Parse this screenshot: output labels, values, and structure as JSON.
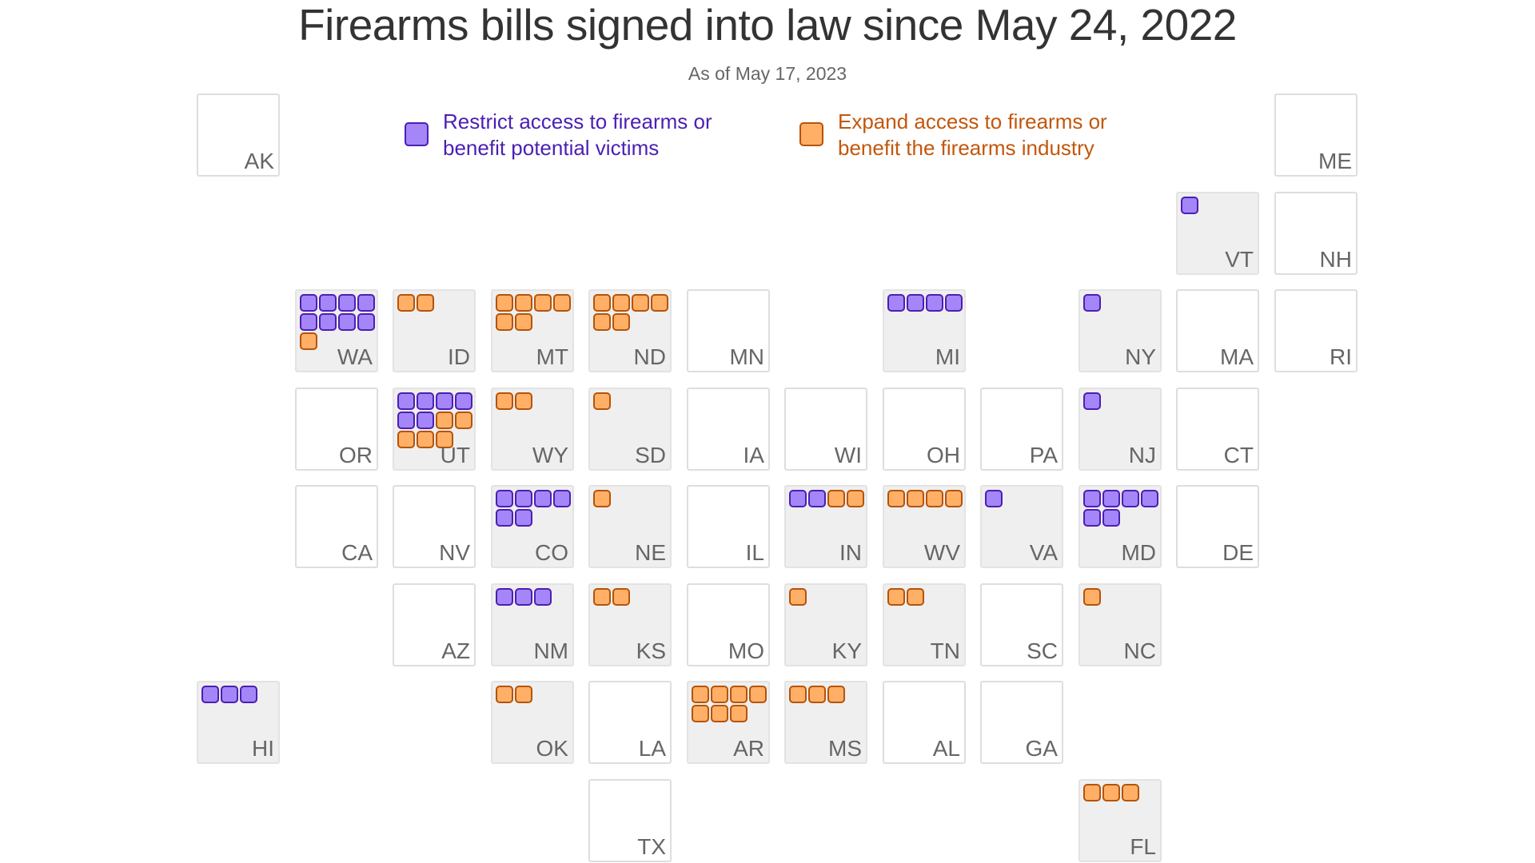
{
  "title": "Firearms bills signed into law since May 24, 2022",
  "subtitle": "As of May 17, 2023",
  "colors": {
    "restrict_fill": "#a586f8",
    "restrict_stroke": "#4b1fb3",
    "restrict_text": "#4b1fb3",
    "expand_fill": "#ffb066",
    "expand_stroke": "#b5530a",
    "expand_text": "#c2570c",
    "tile_border": "#dedede",
    "tile_filled_bg": "#efefef"
  },
  "legend": {
    "restrict": {
      "line1": "Restrict access to firearms or",
      "line2": "benefit potential victims"
    },
    "expand": {
      "line1": "Expand access to firearms or",
      "line2": "benefit the firearms industry"
    }
  },
  "states": [
    {
      "abbr": "AK",
      "col": 0,
      "row": 0,
      "restrict": 0,
      "expand": 0
    },
    {
      "abbr": "ME",
      "col": 11,
      "row": 0,
      "restrict": 0,
      "expand": 0
    },
    {
      "abbr": "VT",
      "col": 10,
      "row": 1,
      "restrict": 1,
      "expand": 0
    },
    {
      "abbr": "NH",
      "col": 11,
      "row": 1,
      "restrict": 0,
      "expand": 0
    },
    {
      "abbr": "WA",
      "col": 1,
      "row": 2,
      "restrict": 8,
      "expand": 1
    },
    {
      "abbr": "ID",
      "col": 2,
      "row": 2,
      "restrict": 0,
      "expand": 2
    },
    {
      "abbr": "MT",
      "col": 3,
      "row": 2,
      "restrict": 0,
      "expand": 6
    },
    {
      "abbr": "ND",
      "col": 4,
      "row": 2,
      "restrict": 0,
      "expand": 6
    },
    {
      "abbr": "MN",
      "col": 5,
      "row": 2,
      "restrict": 0,
      "expand": 0
    },
    {
      "abbr": "MI",
      "col": 7,
      "row": 2,
      "restrict": 4,
      "expand": 0
    },
    {
      "abbr": "NY",
      "col": 9,
      "row": 2,
      "restrict": 1,
      "expand": 0
    },
    {
      "abbr": "MA",
      "col": 10,
      "row": 2,
      "restrict": 0,
      "expand": 0
    },
    {
      "abbr": "RI",
      "col": 11,
      "row": 2,
      "restrict": 0,
      "expand": 0
    },
    {
      "abbr": "OR",
      "col": 1,
      "row": 3,
      "restrict": 0,
      "expand": 0
    },
    {
      "abbr": "UT",
      "col": 2,
      "row": 3,
      "restrict": 6,
      "expand": 5
    },
    {
      "abbr": "WY",
      "col": 3,
      "row": 3,
      "restrict": 0,
      "expand": 2
    },
    {
      "abbr": "SD",
      "col": 4,
      "row": 3,
      "restrict": 0,
      "expand": 1
    },
    {
      "abbr": "IA",
      "col": 5,
      "row": 3,
      "restrict": 0,
      "expand": 0
    },
    {
      "abbr": "WI",
      "col": 6,
      "row": 3,
      "restrict": 0,
      "expand": 0
    },
    {
      "abbr": "OH",
      "col": 7,
      "row": 3,
      "restrict": 0,
      "expand": 0
    },
    {
      "abbr": "PA",
      "col": 8,
      "row": 3,
      "restrict": 0,
      "expand": 0
    },
    {
      "abbr": "NJ",
      "col": 9,
      "row": 3,
      "restrict": 1,
      "expand": 0
    },
    {
      "abbr": "CT",
      "col": 10,
      "row": 3,
      "restrict": 0,
      "expand": 0
    },
    {
      "abbr": "CA",
      "col": 1,
      "row": 4,
      "restrict": 0,
      "expand": 0
    },
    {
      "abbr": "NV",
      "col": 2,
      "row": 4,
      "restrict": 0,
      "expand": 0
    },
    {
      "abbr": "CO",
      "col": 3,
      "row": 4,
      "restrict": 6,
      "expand": 0
    },
    {
      "abbr": "NE",
      "col": 4,
      "row": 4,
      "restrict": 0,
      "expand": 1
    },
    {
      "abbr": "IL",
      "col": 5,
      "row": 4,
      "restrict": 0,
      "expand": 0
    },
    {
      "abbr": "IN",
      "col": 6,
      "row": 4,
      "restrict": 2,
      "expand": 2
    },
    {
      "abbr": "WV",
      "col": 7,
      "row": 4,
      "restrict": 0,
      "expand": 4
    },
    {
      "abbr": "VA",
      "col": 8,
      "row": 4,
      "restrict": 1,
      "expand": 0
    },
    {
      "abbr": "MD",
      "col": 9,
      "row": 4,
      "restrict": 6,
      "expand": 0
    },
    {
      "abbr": "DE",
      "col": 10,
      "row": 4,
      "restrict": 0,
      "expand": 0
    },
    {
      "abbr": "AZ",
      "col": 2,
      "row": 5,
      "restrict": 0,
      "expand": 0
    },
    {
      "abbr": "NM",
      "col": 3,
      "row": 5,
      "restrict": 3,
      "expand": 0
    },
    {
      "abbr": "KS",
      "col": 4,
      "row": 5,
      "restrict": 0,
      "expand": 2
    },
    {
      "abbr": "MO",
      "col": 5,
      "row": 5,
      "restrict": 0,
      "expand": 0
    },
    {
      "abbr": "KY",
      "col": 6,
      "row": 5,
      "restrict": 0,
      "expand": 1
    },
    {
      "abbr": "TN",
      "col": 7,
      "row": 5,
      "restrict": 0,
      "expand": 2
    },
    {
      "abbr": "SC",
      "col": 8,
      "row": 5,
      "restrict": 0,
      "expand": 0
    },
    {
      "abbr": "NC",
      "col": 9,
      "row": 5,
      "restrict": 0,
      "expand": 1
    },
    {
      "abbr": "HI",
      "col": 0,
      "row": 6,
      "restrict": 3,
      "expand": 0
    },
    {
      "abbr": "OK",
      "col": 3,
      "row": 6,
      "restrict": 0,
      "expand": 2
    },
    {
      "abbr": "LA",
      "col": 4,
      "row": 6,
      "restrict": 0,
      "expand": 0
    },
    {
      "abbr": "AR",
      "col": 5,
      "row": 6,
      "restrict": 0,
      "expand": 7
    },
    {
      "abbr": "MS",
      "col": 6,
      "row": 6,
      "restrict": 0,
      "expand": 3
    },
    {
      "abbr": "AL",
      "col": 7,
      "row": 6,
      "restrict": 0,
      "expand": 0
    },
    {
      "abbr": "GA",
      "col": 8,
      "row": 6,
      "restrict": 0,
      "expand": 0
    },
    {
      "abbr": "TX",
      "col": 4,
      "row": 7,
      "restrict": 0,
      "expand": 0
    },
    {
      "abbr": "FL",
      "col": 9,
      "row": 7,
      "restrict": 0,
      "expand": 3
    }
  ]
}
